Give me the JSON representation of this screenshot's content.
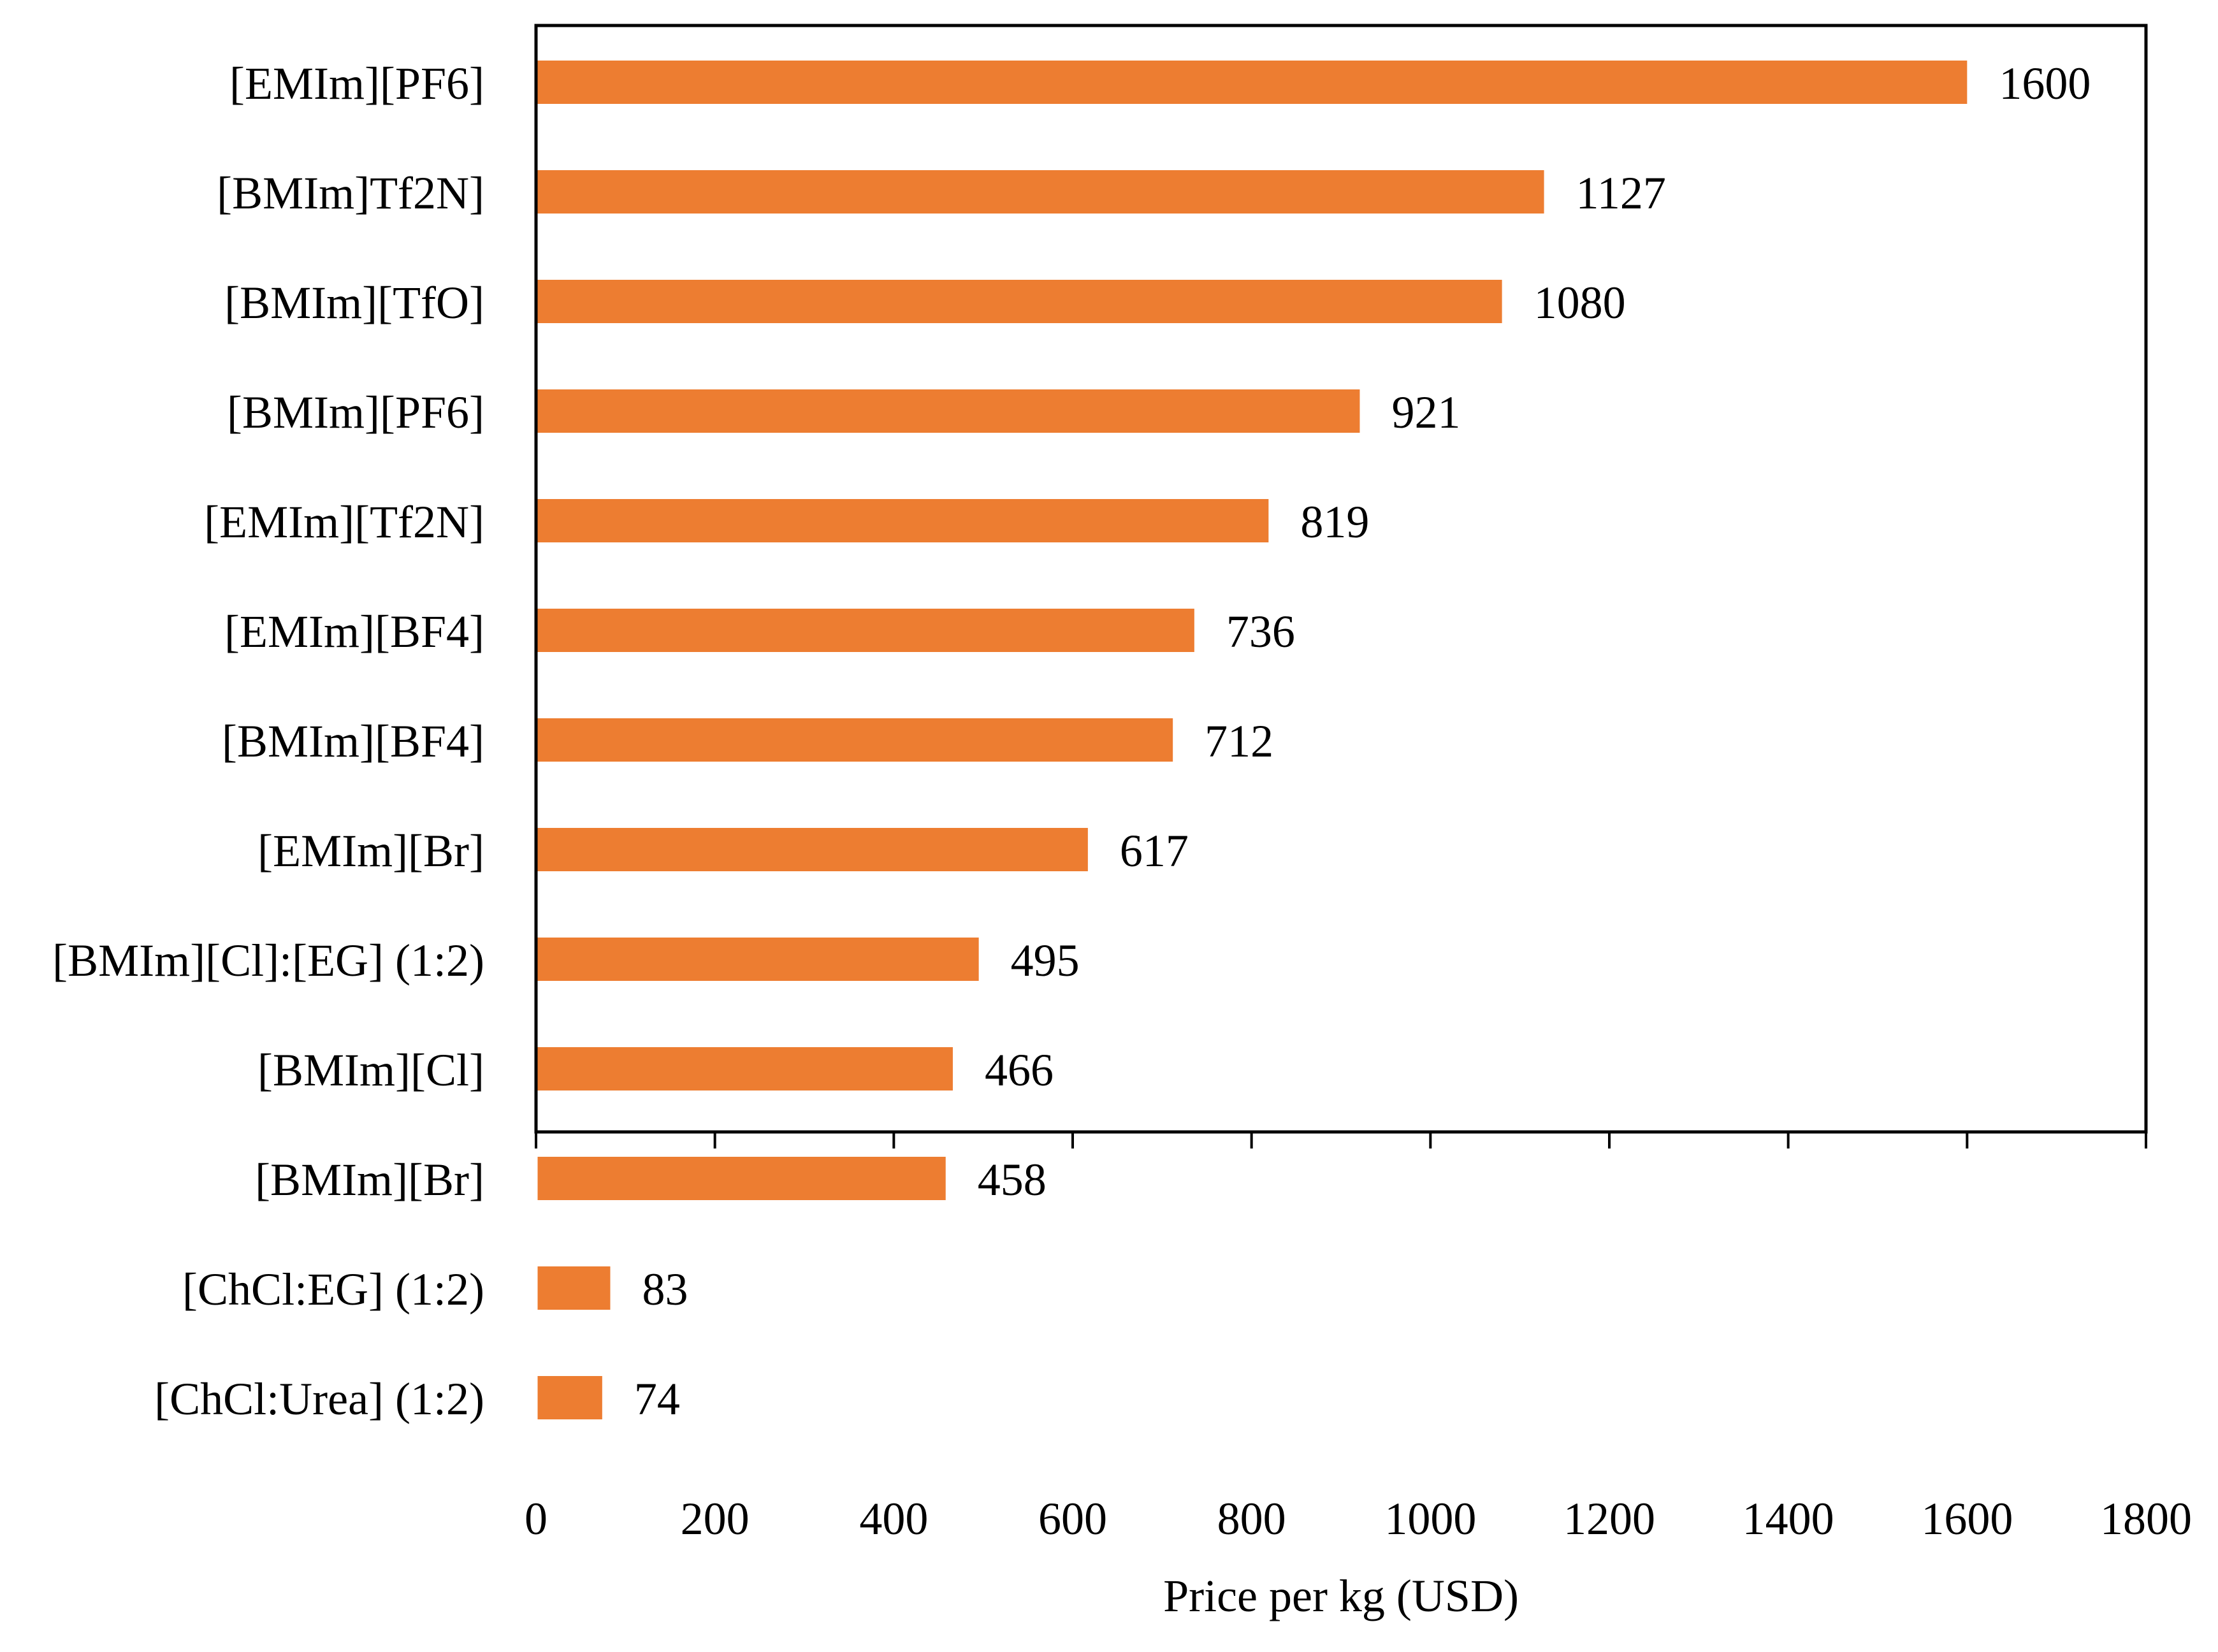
{
  "chart_data": {
    "type": "bar",
    "orientation": "horizontal",
    "title": "",
    "xlabel": "Price per kg (USD)",
    "ylabel": "",
    "xlim": [
      0,
      1800
    ],
    "x_ticks": [
      0,
      200,
      400,
      600,
      800,
      1000,
      1200,
      1400,
      1600,
      1800
    ],
    "grid": false,
    "legend": "none",
    "bar_color": "#ED7D31",
    "categories": [
      "[EMIm][PF6]",
      "[BMIm]Tf2N]",
      "[BMIm][TfO]",
      "[BMIm][PF6]",
      "[EMIm][Tf2N]",
      "[EMIm][BF4]",
      "[BMIm][BF4]",
      "[EMIm][Br]",
      "[BMIm][Cl]:[EG] (1:2)",
      "[BMIm][Cl]",
      "[BMIm][Br]",
      "[ChCl:EG] (1:2)",
      "[ChCl:Urea] (1:2)"
    ],
    "values": [
      1600,
      1127,
      1080,
      921,
      819,
      736,
      712,
      617,
      495,
      466,
      458,
      83,
      74
    ],
    "data_labels": [
      "1600",
      "1127",
      "1080",
      "921",
      "819",
      "736",
      "712",
      "617",
      "495",
      "466",
      "458",
      "83",
      "74"
    ]
  }
}
